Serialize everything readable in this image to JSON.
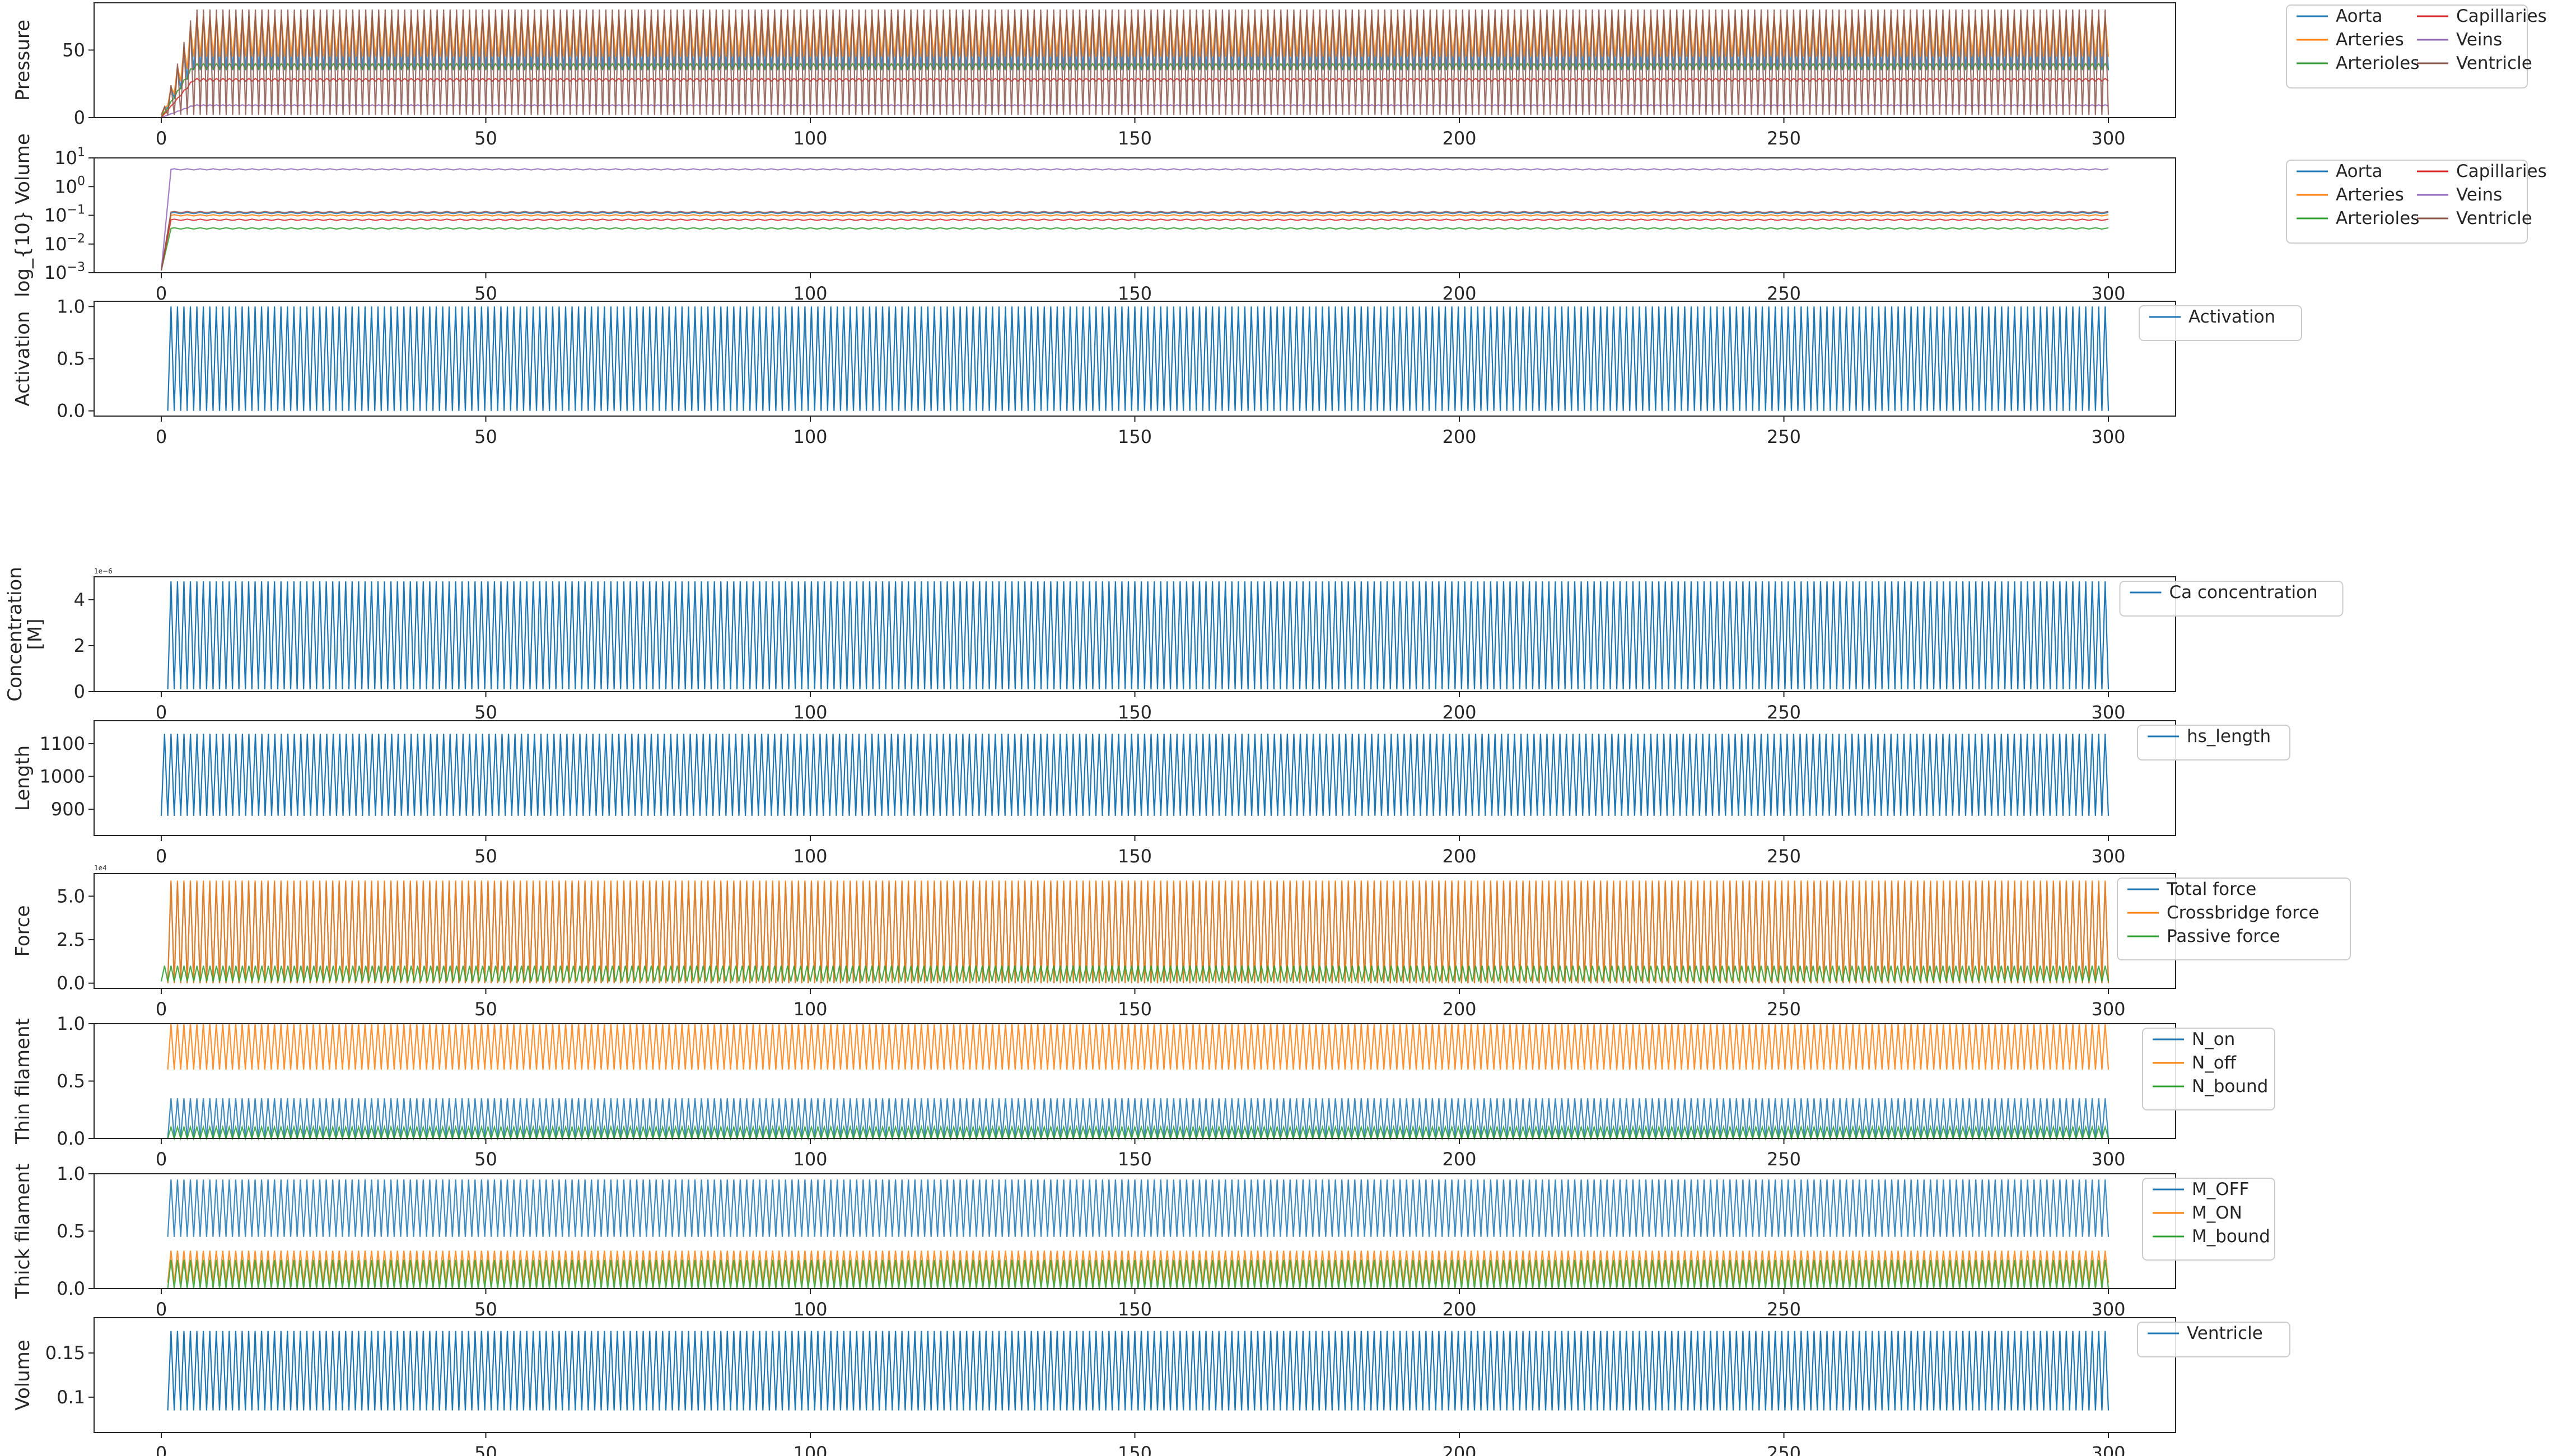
{
  "palette": {
    "blue": "#1f77b4",
    "orange": "#ff7f0e",
    "green": "#2ca02c",
    "red": "#d62728",
    "purple": "#9467bd",
    "brown": "#8c564b"
  },
  "chart_data": [
    {
      "type": "line",
      "ylabel": "Pressure",
      "xlim": [
        0,
        300
      ],
      "xticks": [
        0,
        50,
        100,
        150,
        200,
        250,
        300
      ],
      "ylim": [
        0,
        85
      ],
      "yticks": [
        0,
        50
      ],
      "legend": {
        "placement": "outside-right",
        "columns": 2
      },
      "series": [
        {
          "name": "Aorta",
          "color": "#1f77b4",
          "base": 55,
          "amp": 20,
          "startup": 5
        },
        {
          "name": "Arteries",
          "color": "#ff7f0e",
          "base": 60,
          "amp": 15,
          "startup": 5
        },
        {
          "name": "Arterioles",
          "color": "#2ca02c",
          "base": 38,
          "amp": 2,
          "startup": 5
        },
        {
          "name": "Capillaries",
          "color": "#d62728",
          "base": 28,
          "amp": 1,
          "startup": 5
        },
        {
          "name": "Veins",
          "color": "#9467bd",
          "base": 9,
          "amp": 0.5,
          "startup": 5
        },
        {
          "name": "Ventricle",
          "color": "#8c564b",
          "base": 5,
          "amp": 75,
          "startup": 5,
          "pulse": true
        }
      ]
    },
    {
      "type": "line",
      "ylabel": "log_{10} Volume",
      "yscale": "log",
      "xlim": [
        0,
        300
      ],
      "xticks": [
        0,
        50,
        100,
        150,
        200,
        250,
        300
      ],
      "ylim": [
        0.001,
        10
      ],
      "yticks": [
        "10^{1}",
        "10^{0}",
        "10^{-1}",
        "10^{-2}",
        "10^{-3}"
      ],
      "legend": {
        "placement": "outside-right",
        "columns": 2
      },
      "series": [
        {
          "name": "Aorta",
          "color": "#1f77b4",
          "value": 0.12
        },
        {
          "name": "Arteries",
          "color": "#ff7f0e",
          "value": 0.1
        },
        {
          "name": "Arterioles",
          "color": "#2ca02c",
          "value": 0.035
        },
        {
          "name": "Capillaries",
          "color": "#d62728",
          "value": 0.07
        },
        {
          "name": "Veins",
          "color": "#9467bd",
          "value": 4.0
        },
        {
          "name": "Ventricle",
          "color": "#8c564b",
          "value": 0.13
        }
      ]
    },
    {
      "type": "line",
      "ylabel": "Activation",
      "xlim": [
        0,
        300
      ],
      "xticks": [
        0,
        50,
        100,
        150,
        200,
        250,
        300
      ],
      "ylim": [
        -0.05,
        1.05
      ],
      "yticks": [
        "0.0",
        "0.5",
        "1.0"
      ],
      "legend": {
        "placement": "right"
      },
      "series": [
        {
          "name": "Activation",
          "color": "#1f77b4",
          "min": 0,
          "max": 1,
          "start": 1
        }
      ]
    },
    {
      "type": "line",
      "ylabel": "Concentration [M]",
      "exponent": "1e−6",
      "xlim": [
        0,
        300
      ],
      "xticks": [
        0,
        50,
        100,
        150,
        200,
        250,
        300
      ],
      "ylim": [
        0,
        5
      ],
      "yticks": [
        0,
        2,
        4
      ],
      "legend": {
        "placement": "right"
      },
      "series": [
        {
          "name": "Ca concentration",
          "color": "#1f77b4",
          "min": 0.1,
          "max": 4.8,
          "start": 1
        }
      ]
    },
    {
      "type": "line",
      "ylabel": "Length",
      "xlim": [
        0,
        300
      ],
      "xticks": [
        0,
        50,
        100,
        150,
        200,
        250,
        300
      ],
      "ylim": [
        820,
        1170
      ],
      "yticks": [
        900,
        1000,
        1100
      ],
      "legend": {
        "placement": "right"
      },
      "series": [
        {
          "name": "hs_length",
          "color": "#1f77b4",
          "min": 880,
          "max": 1130,
          "start": 0
        }
      ]
    },
    {
      "type": "line",
      "ylabel": "Force",
      "exponent": "1e4",
      "xlim": [
        0,
        300
      ],
      "xticks": [
        0,
        50,
        100,
        150,
        200,
        250,
        300
      ],
      "ylim": [
        -0.3,
        6.3
      ],
      "yticks": [
        "0.0",
        "2.5",
        "5.0"
      ],
      "legend": {
        "placement": "right"
      },
      "series": [
        {
          "name": "Total force",
          "color": "#1f77b4",
          "min": 0,
          "max": 5.8,
          "start": 1
        },
        {
          "name": "Crossbridge force",
          "color": "#ff7f0e",
          "min": 0,
          "max": 5.9,
          "start": 1
        },
        {
          "name": "Passive force",
          "color": "#2ca02c",
          "min": 0.1,
          "max": 1.0,
          "start": 0
        }
      ]
    },
    {
      "type": "line",
      "ylabel": "Thin filament",
      "xlim": [
        0,
        300
      ],
      "xticks": [
        0,
        50,
        100,
        150,
        200,
        250,
        300
      ],
      "ylim": [
        0,
        1
      ],
      "yticks": [
        "0.0",
        "0.5",
        "1.0"
      ],
      "legend": {
        "placement": "right"
      },
      "series": [
        {
          "name": "N_on",
          "color": "#1f77b4",
          "min": 0,
          "max": 0.35,
          "start": 1
        },
        {
          "name": "N_off",
          "color": "#ff7f0e",
          "min": 0.6,
          "max": 1.0,
          "start": 1
        },
        {
          "name": "N_bound",
          "color": "#2ca02c",
          "min": 0,
          "max": 0.1,
          "start": 1
        }
      ]
    },
    {
      "type": "line",
      "ylabel": "Thick filament",
      "xlim": [
        0,
        300
      ],
      "xticks": [
        0,
        50,
        100,
        150,
        200,
        250,
        300
      ],
      "ylim": [
        0,
        1
      ],
      "yticks": [
        "0.0",
        "0.5",
        "1.0"
      ],
      "legend": {
        "placement": "right"
      },
      "series": [
        {
          "name": "M_OFF",
          "color": "#1f77b4",
          "min": 0.45,
          "max": 0.95,
          "start": 1
        },
        {
          "name": "M_ON",
          "color": "#ff7f0e",
          "min": 0.05,
          "max": 0.33,
          "start": 1
        },
        {
          "name": "M_bound",
          "color": "#2ca02c",
          "min": 0,
          "max": 0.25,
          "start": 1
        }
      ]
    },
    {
      "type": "line",
      "ylabel": "Volume",
      "xlim": [
        0,
        300
      ],
      "xticks": [
        0,
        50,
        100,
        150,
        200,
        250,
        300
      ],
      "ylim": [
        0.06,
        0.19
      ],
      "yticks": [
        0.1,
        0.15
      ],
      "legend": {
        "placement": "right"
      },
      "series": [
        {
          "name": "Ventricle",
          "color": "#1f77b4",
          "min": 0.085,
          "max": 0.175,
          "start": 1
        }
      ]
    }
  ]
}
